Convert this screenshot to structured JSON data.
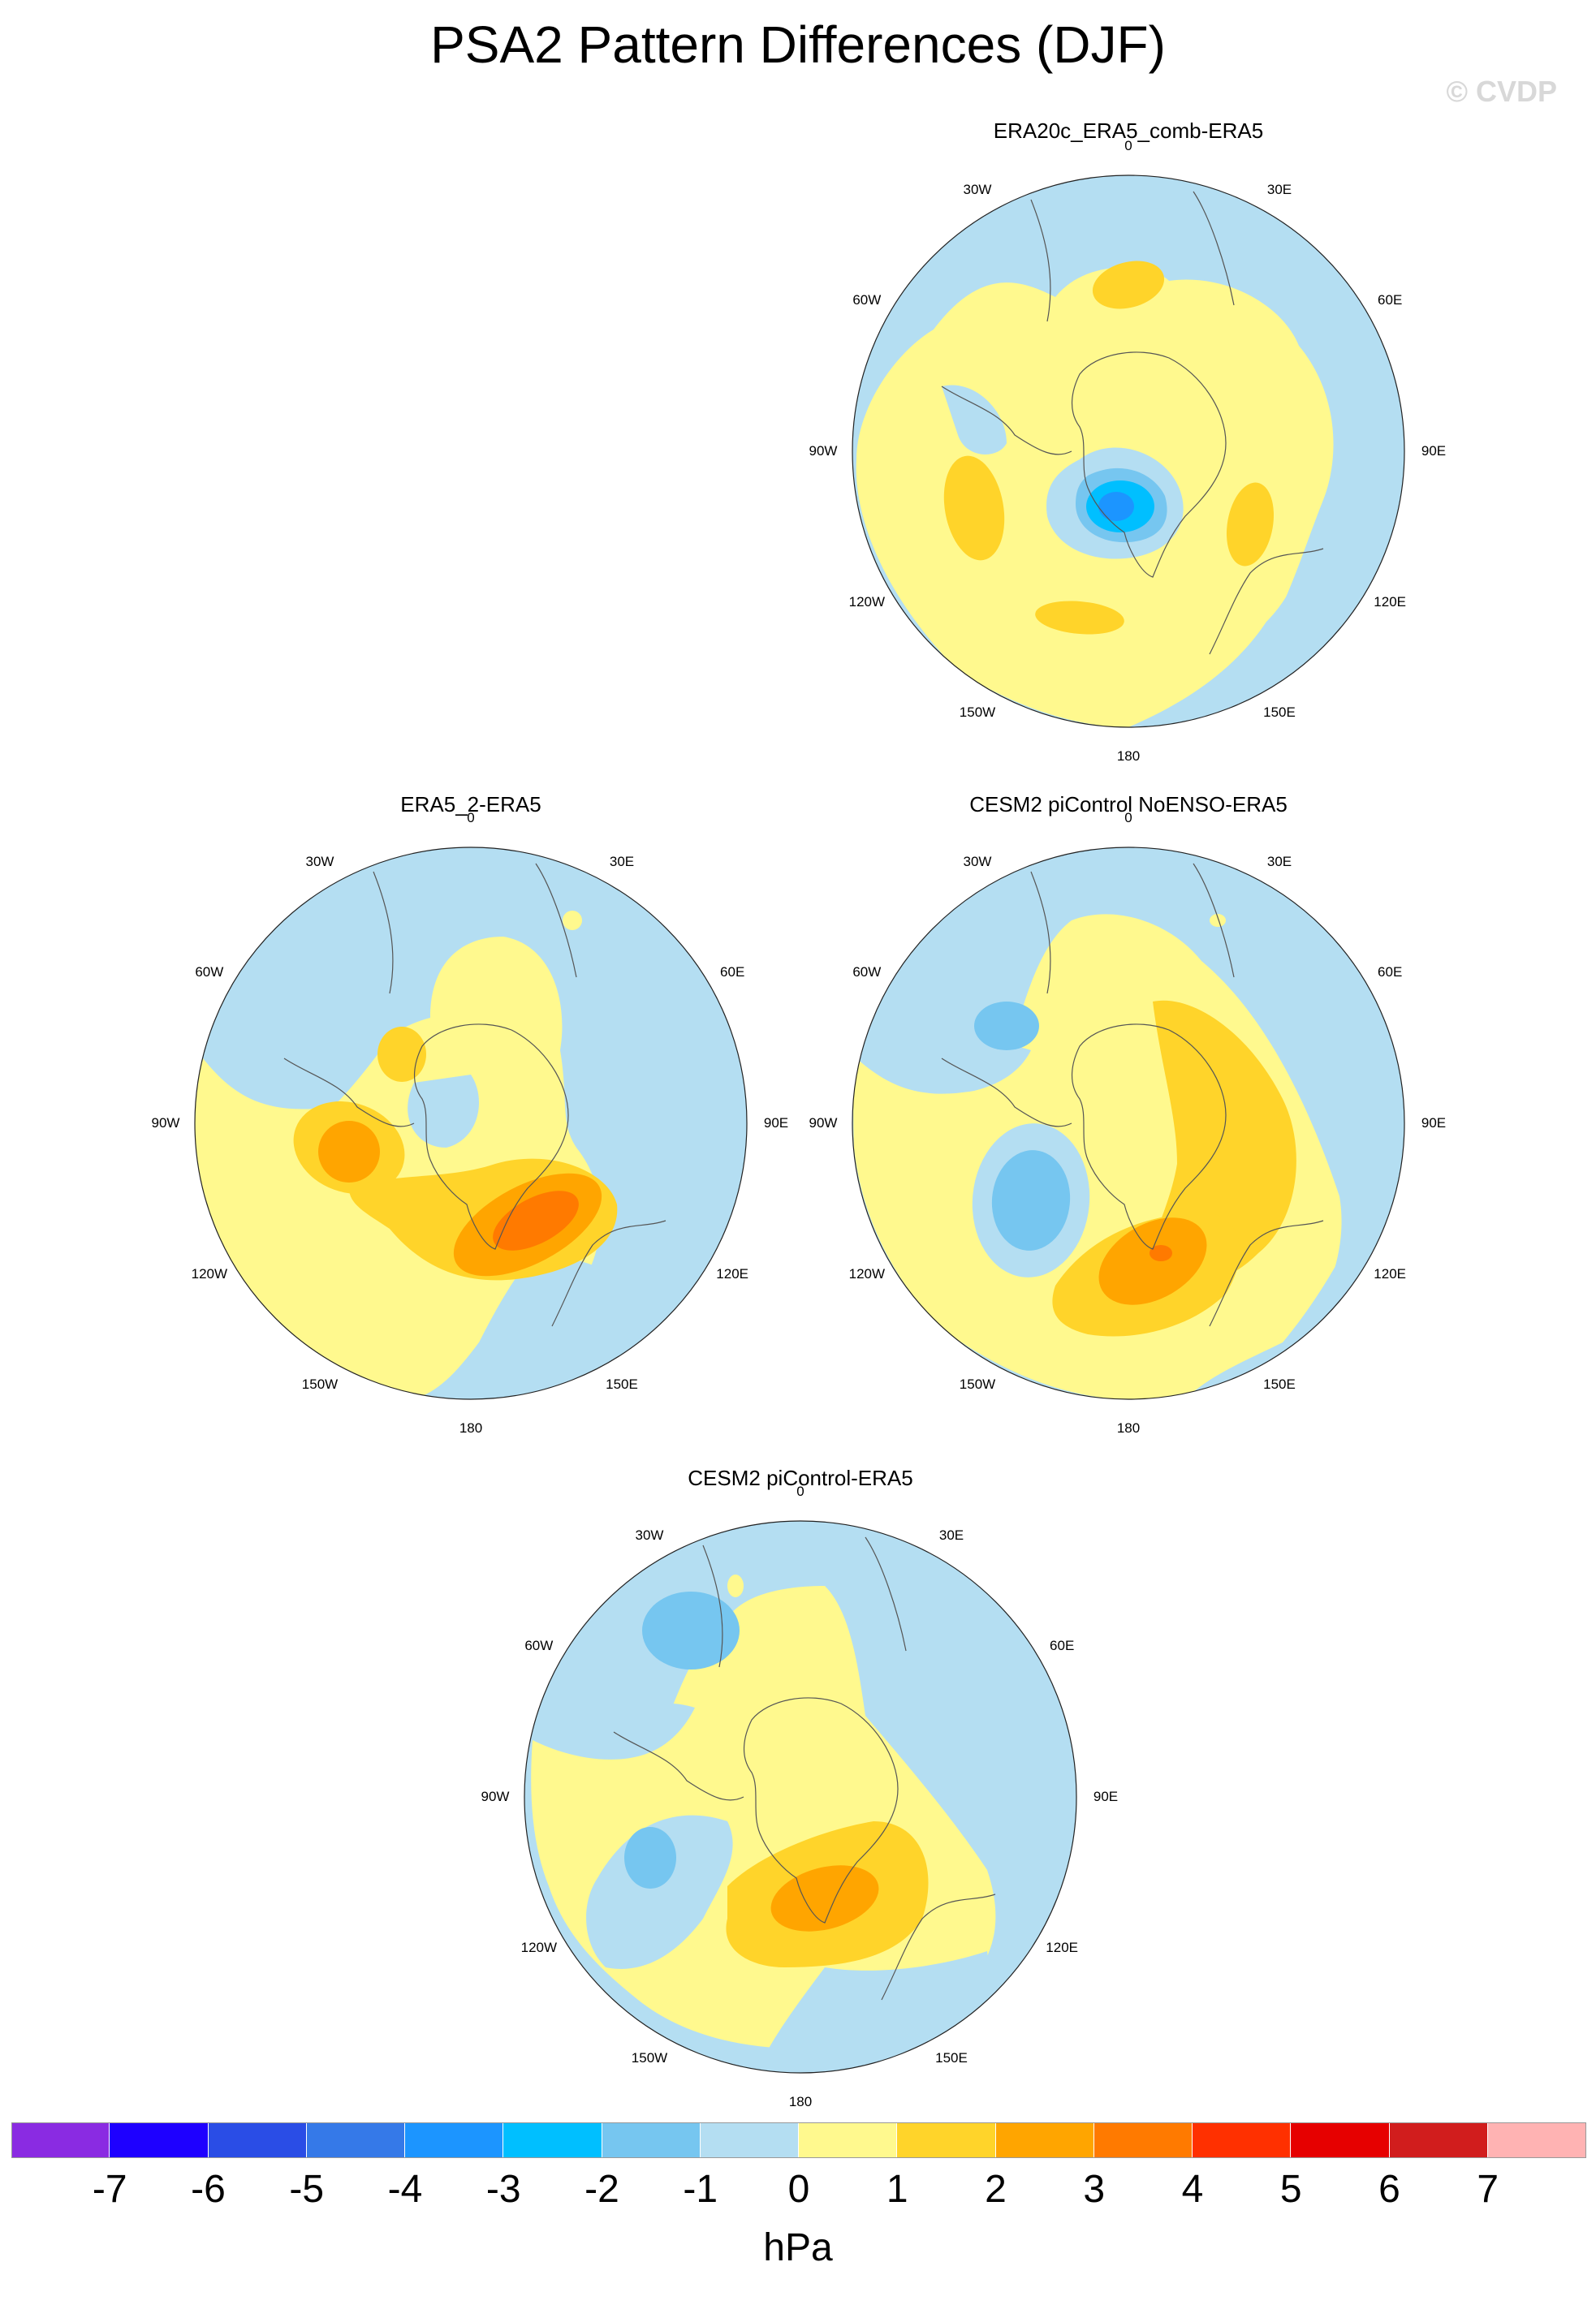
{
  "title": "PSA2 Pattern Differences (DJF)",
  "watermark": "© CVDP",
  "panels": [
    {
      "id": "p1",
      "title": "ERA20c_ERA5_comb-ERA5"
    },
    {
      "id": "p2",
      "title": "ERA5_2-ERA5"
    },
    {
      "id": "p3",
      "title": "CESM2 piControl NoENSO-ERA5"
    },
    {
      "id": "p4",
      "title": "CESM2 piControl-ERA5"
    }
  ],
  "lon_labels": [
    "0",
    "30E",
    "60E",
    "90E",
    "120E",
    "150E",
    "180",
    "150W",
    "120W",
    "90W",
    "60W",
    "30W"
  ],
  "colorbar": {
    "colors": [
      "#8a2be2",
      "#1e00ff",
      "#2a4de6",
      "#3579e8",
      "#1c95ff",
      "#00bfff",
      "#76c6f0",
      "#b4def2",
      "#fff98e",
      "#ffd42a",
      "#ffa500",
      "#ff7a00",
      "#ff3000",
      "#e60000",
      "#d11d1d",
      "#ffb3b3"
    ],
    "labels": [
      "-7",
      "-6",
      "-5",
      "-4",
      "-3",
      "-2",
      "-1",
      "0",
      "1",
      "2",
      "3",
      "4",
      "5",
      "6",
      "7"
    ],
    "units": "hPa"
  }
}
